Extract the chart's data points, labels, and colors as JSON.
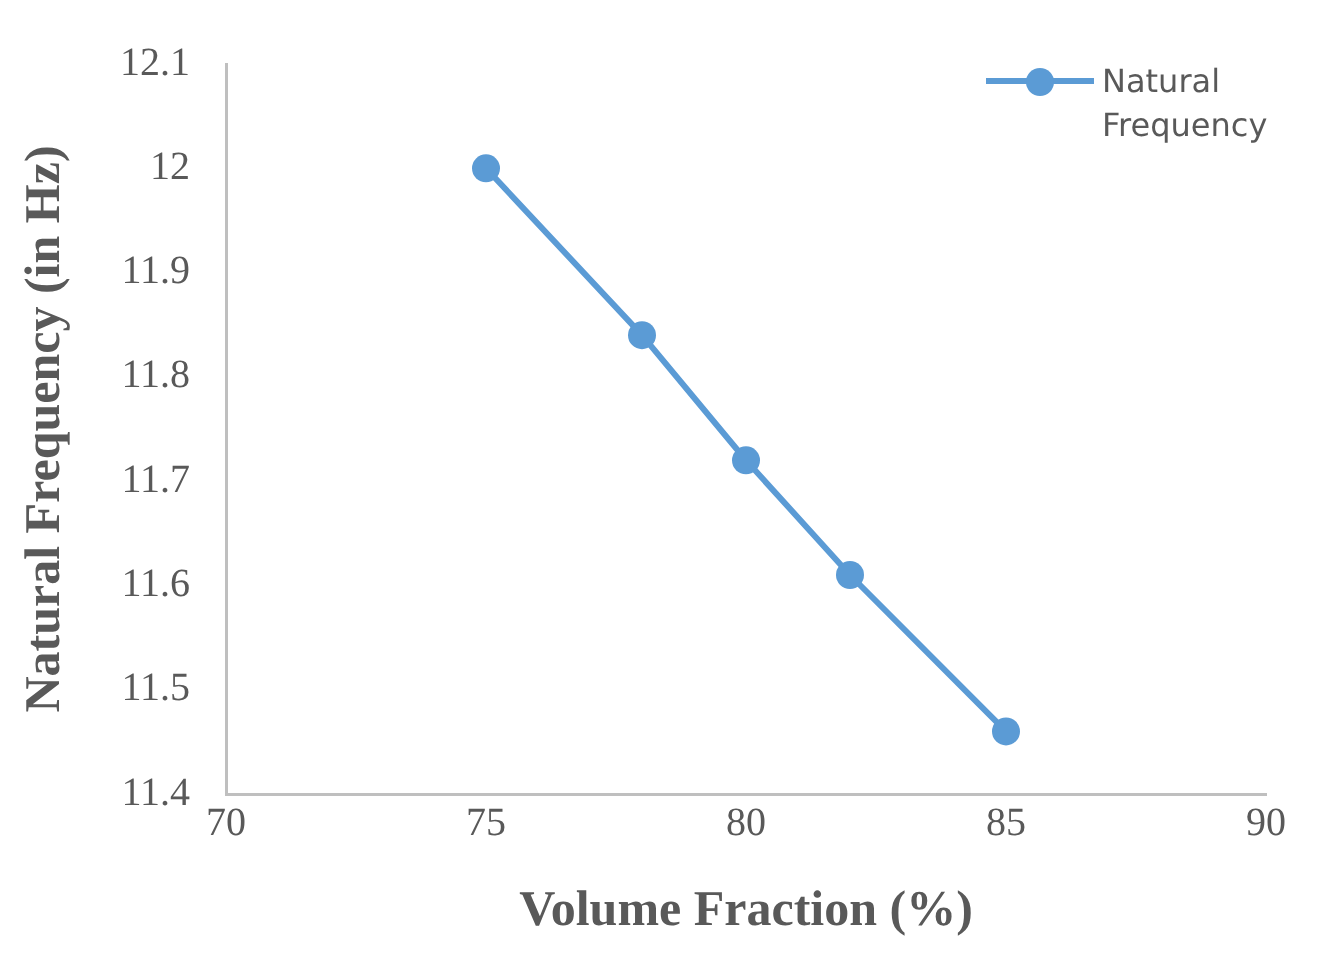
{
  "chart_data": {
    "type": "line",
    "xlabel": "Volume Fraction (%)",
    "ylabel": "Natural Frequency (in Hz)",
    "x": [
      75,
      78,
      80,
      82,
      85
    ],
    "series": [
      {
        "name": "Natural Frequency",
        "color": "#5b9bd5",
        "values": [
          12.0,
          11.84,
          11.72,
          11.61,
          11.46
        ]
      }
    ],
    "xlim": [
      70,
      90
    ],
    "xticks": [
      70,
      75,
      80,
      85,
      90
    ],
    "ylim": [
      11.4,
      12.1
    ],
    "yticks": [
      11.4,
      11.5,
      11.6,
      11.7,
      11.8,
      11.9,
      12,
      12.1
    ],
    "grid": false,
    "legend": "top right",
    "marker": "circle",
    "line_style": "solid"
  }
}
